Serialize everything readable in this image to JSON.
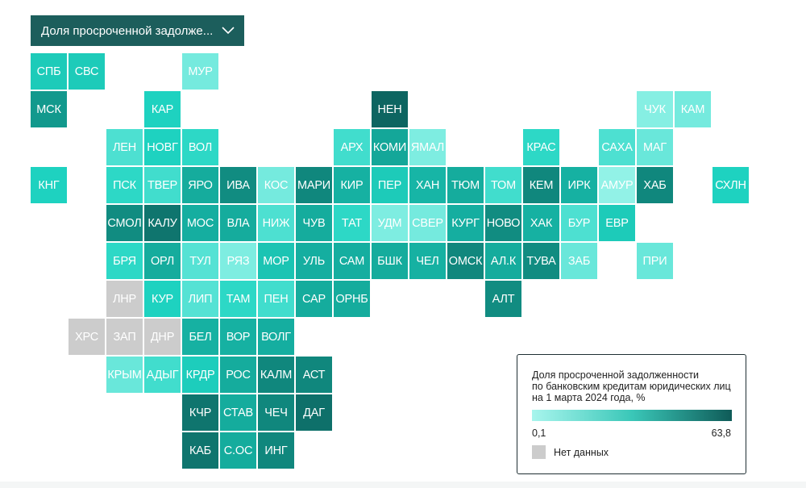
{
  "dropdown": {
    "label": "Доля просроченной задолже...",
    "icon": "chevron-down-icon"
  },
  "colors": {
    "no_data": "#cccccc",
    "scale_min": "#a8f5ed",
    "scale_mid": "#3ac7b8",
    "scale_max": "#0f5b58",
    "dropdown_bg": "#1c5e5c"
  },
  "legend": {
    "title_lines": [
      "Доля просроченной задолженности",
      "по банковским кредитам юридических лиц",
      "на 1 марта 2024 года, %"
    ],
    "min": "0,1",
    "max": "63,8",
    "no_data": "Нет данных"
  },
  "regions": [
    {
      "label": "СПБ",
      "row": 0,
      "col": 0,
      "shade": 0.4
    },
    {
      "label": "СВС",
      "row": 0,
      "col": 1,
      "shade": 0.4
    },
    {
      "label": "МУР",
      "row": 0,
      "col": 4,
      "shade": 0.12
    },
    {
      "label": "МСК",
      "row": 1,
      "col": 0,
      "shade": 0.72
    },
    {
      "label": "КАР",
      "row": 1,
      "col": 3,
      "shade": 0.35
    },
    {
      "label": "НЕН",
      "row": 1,
      "col": 9,
      "shade": 0.95
    },
    {
      "label": "ЧУК",
      "row": 1,
      "col": 16,
      "shade": 0.08
    },
    {
      "label": "КАМ",
      "row": 1,
      "col": 17,
      "shade": 0.12
    },
    {
      "label": "ЛЕН",
      "row": 2,
      "col": 2,
      "shade": 0.22
    },
    {
      "label": "НОВГ",
      "row": 2,
      "col": 3,
      "shade": 0.35
    },
    {
      "label": "ВОЛ",
      "row": 2,
      "col": 4,
      "shade": 0.3
    },
    {
      "label": "АРХ",
      "row": 2,
      "col": 8,
      "shade": 0.25
    },
    {
      "label": "КОМИ",
      "row": 2,
      "col": 9,
      "shade": 0.65
    },
    {
      "label": "ЯМАЛ",
      "row": 2,
      "col": 10,
      "shade": 0.1
    },
    {
      "label": "КРАС",
      "row": 2,
      "col": 13,
      "shade": 0.3
    },
    {
      "label": "САХА",
      "row": 2,
      "col": 15,
      "shade": 0.22
    },
    {
      "label": "МАГ",
      "row": 2,
      "col": 16,
      "shade": 0.15
    },
    {
      "label": "КНГ",
      "row": 3,
      "col": 0,
      "shade": 0.35
    },
    {
      "label": "ПСК",
      "row": 3,
      "col": 2,
      "shade": 0.3
    },
    {
      "label": "ТВЕР",
      "row": 3,
      "col": 3,
      "shade": 0.25
    },
    {
      "label": "ЯРО",
      "row": 3,
      "col": 4,
      "shade": 0.62
    },
    {
      "label": "ИВА",
      "row": 3,
      "col": 5,
      "shade": 0.78
    },
    {
      "label": "КОС",
      "row": 3,
      "col": 6,
      "shade": 0.12
    },
    {
      "label": "МАРИ",
      "row": 3,
      "col": 7,
      "shade": 0.8
    },
    {
      "label": "КИР",
      "row": 3,
      "col": 8,
      "shade": 0.58
    },
    {
      "label": "ПЕР",
      "row": 3,
      "col": 9,
      "shade": 0.4
    },
    {
      "label": "ХАН",
      "row": 3,
      "col": 10,
      "shade": 0.55
    },
    {
      "label": "ТЮМ",
      "row": 3,
      "col": 11,
      "shade": 0.62
    },
    {
      "label": "ТОМ",
      "row": 3,
      "col": 12,
      "shade": 0.25
    },
    {
      "label": "КЕМ",
      "row": 3,
      "col": 13,
      "shade": 0.8
    },
    {
      "label": "ИРК",
      "row": 3,
      "col": 14,
      "shade": 0.58
    },
    {
      "label": "АМУР",
      "row": 3,
      "col": 15,
      "shade": 0.05
    },
    {
      "label": "ХАБ",
      "row": 3,
      "col": 16,
      "shade": 0.8
    },
    {
      "label": "СХЛН",
      "row": 3,
      "col": 18,
      "shade": 0.35
    },
    {
      "label": "СМОЛ",
      "row": 4,
      "col": 2,
      "shade": 0.78
    },
    {
      "label": "КАЛУ",
      "row": 4,
      "col": 3,
      "shade": 0.88
    },
    {
      "label": "МОС",
      "row": 4,
      "col": 4,
      "shade": 0.6
    },
    {
      "label": "ВЛА",
      "row": 4,
      "col": 5,
      "shade": 0.62
    },
    {
      "label": "НИЖ",
      "row": 4,
      "col": 6,
      "shade": 0.22
    },
    {
      "label": "ЧУВ",
      "row": 4,
      "col": 7,
      "shade": 0.62
    },
    {
      "label": "ТАТ",
      "row": 4,
      "col": 8,
      "shade": 0.3
    },
    {
      "label": "УДМ",
      "row": 4,
      "col": 9,
      "shade": 0.1
    },
    {
      "label": "СВЕР",
      "row": 4,
      "col": 10,
      "shade": 0.12
    },
    {
      "label": "КУРГ",
      "row": 4,
      "col": 11,
      "shade": 0.6
    },
    {
      "label": "НОВО",
      "row": 4,
      "col": 12,
      "shade": 0.78
    },
    {
      "label": "ХАК",
      "row": 4,
      "col": 13,
      "shade": 0.58
    },
    {
      "label": "БУР",
      "row": 4,
      "col": 14,
      "shade": 0.22
    },
    {
      "label": "ЕВР",
      "row": 4,
      "col": 15,
      "shade": 0.4
    },
    {
      "label": "БРЯ",
      "row": 5,
      "col": 2,
      "shade": 0.3
    },
    {
      "label": "ОРЛ",
      "row": 5,
      "col": 3,
      "shade": 0.62
    },
    {
      "label": "ТУЛ",
      "row": 5,
      "col": 4,
      "shade": 0.2
    },
    {
      "label": "РЯЗ",
      "row": 5,
      "col": 5,
      "shade": 0.1
    },
    {
      "label": "МОР",
      "row": 5,
      "col": 6,
      "shade": 0.45
    },
    {
      "label": "УЛЬ",
      "row": 5,
      "col": 7,
      "shade": 0.6
    },
    {
      "label": "САМ",
      "row": 5,
      "col": 8,
      "shade": 0.6
    },
    {
      "label": "БШК",
      "row": 5,
      "col": 9,
      "shade": 0.62
    },
    {
      "label": "ЧЕЛ",
      "row": 5,
      "col": 10,
      "shade": 0.58
    },
    {
      "label": "ОМСК",
      "row": 5,
      "col": 11,
      "shade": 0.8
    },
    {
      "label": "АЛ.К",
      "row": 5,
      "col": 12,
      "shade": 0.62
    },
    {
      "label": "ТУВА",
      "row": 5,
      "col": 13,
      "shade": 0.78
    },
    {
      "label": "ЗАБ",
      "row": 5,
      "col": 14,
      "shade": 0.15
    },
    {
      "label": "ПРИ",
      "row": 5,
      "col": 16,
      "shade": 0.15
    },
    {
      "label": "ЛНР",
      "row": 6,
      "col": 2,
      "shade": null
    },
    {
      "label": "КУР",
      "row": 6,
      "col": 3,
      "shade": 0.35
    },
    {
      "label": "ЛИП",
      "row": 6,
      "col": 4,
      "shade": 0.2
    },
    {
      "label": "ТАМ",
      "row": 6,
      "col": 5,
      "shade": 0.3
    },
    {
      "label": "ПЕН",
      "row": 6,
      "col": 6,
      "shade": 0.25
    },
    {
      "label": "САР",
      "row": 6,
      "col": 7,
      "shade": 0.62
    },
    {
      "label": "ОРНБ",
      "row": 6,
      "col": 8,
      "shade": 0.62
    },
    {
      "label": "АЛТ",
      "row": 6,
      "col": 12,
      "shade": 0.78
    },
    {
      "label": "ХРС",
      "row": 7,
      "col": 1,
      "shade": null
    },
    {
      "label": "ЗАП",
      "row": 7,
      "col": 2,
      "shade": null
    },
    {
      "label": "ДНР",
      "row": 7,
      "col": 3,
      "shade": null
    },
    {
      "label": "БЕЛ",
      "row": 7,
      "col": 4,
      "shade": 0.58
    },
    {
      "label": "ВОР",
      "row": 7,
      "col": 5,
      "shade": 0.58
    },
    {
      "label": "ВОЛГ",
      "row": 7,
      "col": 6,
      "shade": 0.6
    },
    {
      "label": "КРЫМ",
      "row": 8,
      "col": 2,
      "shade": 0.15
    },
    {
      "label": "АДЫГ",
      "row": 8,
      "col": 3,
      "shade": 0.25
    },
    {
      "label": "КРДР",
      "row": 8,
      "col": 4,
      "shade": 0.38
    },
    {
      "label": "РОС",
      "row": 8,
      "col": 5,
      "shade": 0.62
    },
    {
      "label": "КАЛМ",
      "row": 8,
      "col": 6,
      "shade": 0.8
    },
    {
      "label": "АСТ",
      "row": 8,
      "col": 7,
      "shade": 0.8
    },
    {
      "label": "КЧР",
      "row": 9,
      "col": 4,
      "shade": 0.88
    },
    {
      "label": "СТАВ",
      "row": 9,
      "col": 5,
      "shade": 0.62
    },
    {
      "label": "ЧЕЧ",
      "row": 9,
      "col": 6,
      "shade": 0.8
    },
    {
      "label": "ДАГ",
      "row": 9,
      "col": 7,
      "shade": 0.9
    },
    {
      "label": "КАБ",
      "row": 10,
      "col": 4,
      "shade": 0.88
    },
    {
      "label": "С.ОС",
      "row": 10,
      "col": 5,
      "shade": 0.62
    },
    {
      "label": "ИНГ",
      "row": 10,
      "col": 6,
      "shade": 0.8
    }
  ]
}
